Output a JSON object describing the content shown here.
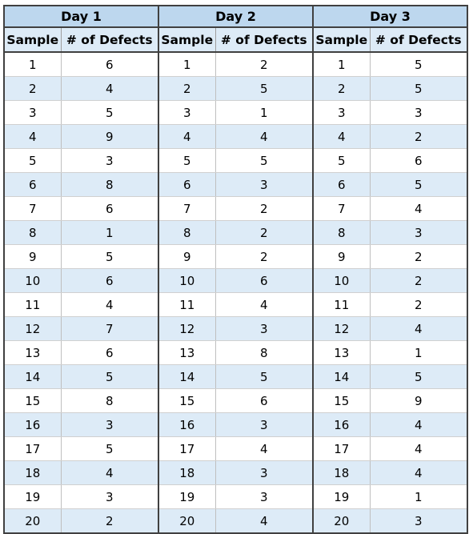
{
  "table": {
    "days": [
      "Day 1",
      "Day 2",
      "Day 3"
    ],
    "headers": {
      "sample": "Sample",
      "defects": "# of Defects"
    },
    "rows": [
      [
        "1",
        "6",
        "1",
        "2",
        "1",
        "5"
      ],
      [
        "2",
        "4",
        "2",
        "5",
        "2",
        "5"
      ],
      [
        "3",
        "5",
        "3",
        "1",
        "3",
        "3"
      ],
      [
        "4",
        "9",
        "4",
        "4",
        "4",
        "2"
      ],
      [
        "5",
        "3",
        "5",
        "5",
        "5",
        "6"
      ],
      [
        "6",
        "8",
        "6",
        "3",
        "6",
        "5"
      ],
      [
        "7",
        "6",
        "7",
        "2",
        "7",
        "4"
      ],
      [
        "8",
        "1",
        "8",
        "2",
        "8",
        "3"
      ],
      [
        "9",
        "5",
        "9",
        "2",
        "9",
        "2"
      ],
      [
        "10",
        "6",
        "10",
        "6",
        "10",
        "2"
      ],
      [
        "11",
        "4",
        "11",
        "4",
        "11",
        "2"
      ],
      [
        "12",
        "7",
        "12",
        "3",
        "12",
        "4"
      ],
      [
        "13",
        "6",
        "13",
        "8",
        "13",
        "1"
      ],
      [
        "14",
        "5",
        "14",
        "5",
        "14",
        "5"
      ],
      [
        "15",
        "8",
        "15",
        "6",
        "15",
        "9"
      ],
      [
        "16",
        "3",
        "16",
        "3",
        "16",
        "4"
      ],
      [
        "17",
        "5",
        "17",
        "4",
        "17",
        "4"
      ],
      [
        "18",
        "4",
        "18",
        "3",
        "18",
        "4"
      ],
      [
        "19",
        "3",
        "19",
        "3",
        "19",
        "1"
      ],
      [
        "20",
        "2",
        "20",
        "4",
        "20",
        "3"
      ]
    ]
  }
}
